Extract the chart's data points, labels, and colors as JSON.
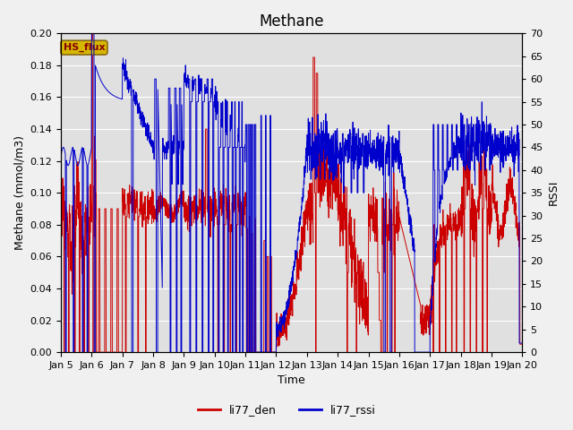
{
  "title": "Methane",
  "ylabel_left": "Methane (mmol/m3)",
  "ylabel_right": "RSSI",
  "xlabel": "Time",
  "ylim_left": [
    0.0,
    0.2
  ],
  "ylim_right": [
    0,
    70
  ],
  "yticks_left": [
    0.0,
    0.02,
    0.04,
    0.06,
    0.08,
    0.1,
    0.12,
    0.14,
    0.16,
    0.18,
    0.2
  ],
  "yticks_right": [
    0,
    5,
    10,
    15,
    20,
    25,
    30,
    35,
    40,
    45,
    50,
    55,
    60,
    65,
    70
  ],
  "xtick_labels": [
    "Jan 5",
    "Jan 6",
    "Jan 7",
    "Jan 8",
    "Jan 9",
    "Jan 10",
    "Jan 11",
    "Jan 12",
    "Jan 13",
    "Jan 14",
    "Jan 15",
    "Jan 16",
    "Jan 17",
    "Jan 18",
    "Jan 19",
    "Jan 20"
  ],
  "color_den": "#cc0000",
  "color_rssi": "#0000cc",
  "legend_labels": [
    "li77_den",
    "li77_rssi"
  ],
  "annotation_text": "HS_flux",
  "annotation_color": "#8b0000",
  "annotation_bg": "#d4b800",
  "background_color": "#e0e0e0",
  "grid_color": "#ffffff",
  "title_fontsize": 12,
  "axis_fontsize": 9,
  "tick_fontsize": 8,
  "linewidth": 0.8
}
